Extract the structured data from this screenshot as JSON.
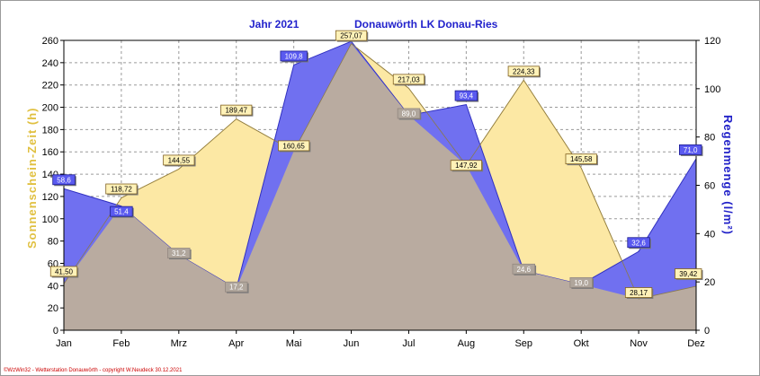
{
  "chart_data": {
    "type": "area",
    "title_left": "Jahr  2021",
    "title_right": "Donauwörth LK Donau-Ries",
    "categories": [
      "Jan",
      "Feb",
      "Mrz",
      "Apr",
      "Mai",
      "Jun",
      "Jul",
      "Aug",
      "Sep",
      "Okt",
      "Nov",
      "Dez"
    ],
    "ylabel_left": "Sonnenschein-Zeit  (h)",
    "ylabel_right": "Regenmenge  (l/m²)",
    "y_left": {
      "min": 0,
      "max": 260,
      "ticks": [
        0,
        20,
        40,
        60,
        80,
        100,
        120,
        140,
        160,
        180,
        200,
        220,
        240,
        260
      ]
    },
    "y_right": {
      "min": 0,
      "max": 120,
      "ticks": [
        0,
        20,
        40,
        60,
        80,
        100,
        120
      ]
    },
    "grid": true,
    "series": [
      {
        "name": "Sonnenschein-Zeit",
        "axis": "left",
        "values": [
          41.5,
          118.72,
          144.55,
          189.47,
          160.65,
          257.07,
          217.03,
          147.92,
          224.33,
          145.58,
          28.17,
          39.42
        ],
        "labels": [
          "41,50",
          "118,72",
          "144,55",
          "189,47",
          "160,65",
          "257,07",
          "217,03",
          "147,92",
          "224,33",
          "145,58",
          "28,17",
          "39,42"
        ],
        "color": "#fce8a4",
        "border": "#d9b64a"
      },
      {
        "name": "Regenmenge",
        "axis": "right",
        "values": [
          58.6,
          51.4,
          31.2,
          17.2,
          109.8,
          119.6,
          89.0,
          93.4,
          24.6,
          19.0,
          32.6,
          71.0
        ],
        "labels": [
          "58,6",
          "51,4",
          "31,2",
          "17,2",
          "109,8",
          "",
          "89,0",
          "93,4",
          "24,6",
          "19,0",
          "32,6",
          "71,0"
        ],
        "color": "#7070f0",
        "border": "#3030c0"
      }
    ],
    "overlap_color": "#b9aba0"
  },
  "footer": "©WzWin32 - Wetterstation Donauwörth - copyright W.Neudeck 30.12.2021"
}
